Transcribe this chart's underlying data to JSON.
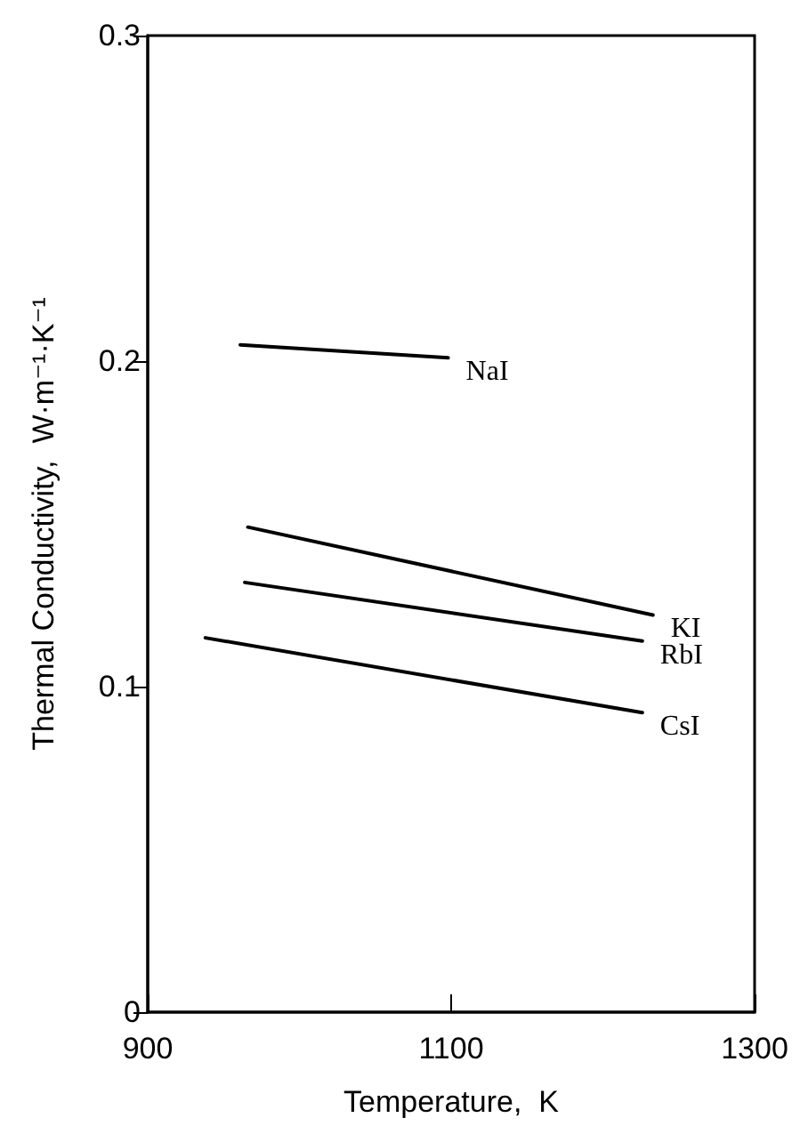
{
  "chart_data": {
    "type": "line",
    "xlabel": "Temperature,  K",
    "ylabel": "Thermal Conductivity,  W·m⁻¹·K⁻¹",
    "xlim": [
      900,
      1300
    ],
    "xticks": [
      900,
      1100,
      1300
    ],
    "ylim": [
      0,
      0.3
    ],
    "yticks": [
      0,
      0.1,
      0.2,
      0.3
    ],
    "grid": false,
    "legend": false,
    "marker": "none",
    "line_style": "solid",
    "series": [
      {
        "name": "NaI",
        "color": "#000000",
        "x": [
          961,
          1098
        ],
        "values": [
          0.205,
          0.201
        ]
      },
      {
        "name": "KI",
        "color": "#000000",
        "x": [
          966,
          1233
        ],
        "values": [
          0.149,
          0.122
        ]
      },
      {
        "name": "RbI",
        "color": "#000000",
        "x": [
          964,
          1226
        ],
        "values": [
          0.132,
          0.114
        ]
      },
      {
        "name": "CsI",
        "color": "#000000",
        "x": [
          938,
          1226
        ],
        "values": [
          0.115,
          0.092
        ]
      }
    ]
  }
}
